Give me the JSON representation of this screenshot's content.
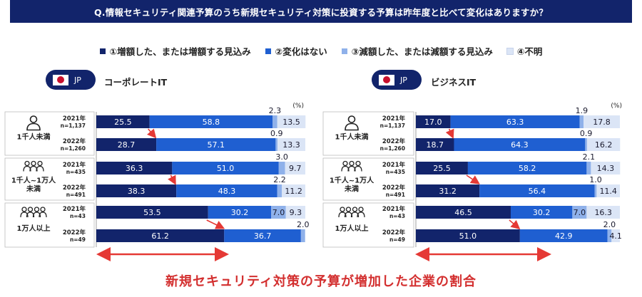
{
  "question": "Q.情報セキュリティ関連予算のうち新規セキュリティ対策に投資する予算は昨年度と比べて変化はありますか？",
  "legend": [
    {
      "label": "①増額した、または増額する見込み",
      "color": "#12246b"
    },
    {
      "label": "②変化はない",
      "color": "#1f5fd1"
    },
    {
      "label": "③減額した、または減額する見込み",
      "color": "#8fb1ea"
    },
    {
      "label": "④不明",
      "color": "#dbe5f6"
    }
  ],
  "footer": "新規セキュリティ対策の予算が増加した企業の割合",
  "chart_data": [
    {
      "type": "bar",
      "orientation": "horizontal",
      "stacked": true,
      "region": "JP",
      "title": "コーポレートIT",
      "unit": "(%)",
      "xlim": [
        0,
        100
      ],
      "groups": [
        {
          "label": "1千人未満",
          "rows": [
            {
              "year": "2021年",
              "n": "n=1,137",
              "values": [
                25.5,
                58.8,
                2.3,
                13.5
              ],
              "labels": [
                "25.5",
                "58.8",
                "2.3",
                "13.5"
              ]
            },
            {
              "year": "2022年",
              "n": "n=1,260",
              "values": [
                28.7,
                57.1,
                0.9,
                13.3
              ],
              "labels": [
                "28.7",
                "57.1",
                "0.9",
                "13.3"
              ]
            }
          ]
        },
        {
          "label": "1千人~1万人未満",
          "rows": [
            {
              "year": "2021年",
              "n": "n=435",
              "values": [
                36.3,
                51.0,
                3.0,
                9.7
              ],
              "labels": [
                "36.3",
                "51.0",
                "3.0",
                "9.7"
              ]
            },
            {
              "year": "2022年",
              "n": "n=491",
              "values": [
                38.3,
                48.3,
                2.2,
                11.2
              ],
              "labels": [
                "38.3",
                "48.3",
                "2.2",
                "11.2"
              ]
            }
          ]
        },
        {
          "label": "1万人以上",
          "rows": [
            {
              "year": "2021年",
              "n": "n=43",
              "values": [
                53.5,
                30.2,
                7.0,
                9.3
              ],
              "labels": [
                "53.5",
                "30.2",
                "7.0",
                "9.3"
              ]
            },
            {
              "year": "2022年",
              "n": "n=49",
              "values": [
                61.2,
                36.7,
                2.0,
                0
              ],
              "labels": [
                "61.2",
                "36.7",
                "2.0",
                ""
              ]
            }
          ]
        }
      ]
    },
    {
      "type": "bar",
      "orientation": "horizontal",
      "stacked": true,
      "region": "JP",
      "title": "ビジネスIT",
      "unit": "(%)",
      "xlim": [
        0,
        100
      ],
      "groups": [
        {
          "label": "1千人未満",
          "rows": [
            {
              "year": "2021年",
              "n": "n=1,137",
              "values": [
                17.0,
                63.3,
                1.9,
                17.8
              ],
              "labels": [
                "17.0",
                "63.3",
                "1.9",
                "17.8"
              ]
            },
            {
              "year": "2022年",
              "n": "n=1,260",
              "values": [
                18.7,
                64.3,
                0.9,
                16.2
              ],
              "labels": [
                "18.7",
                "64.3",
                "0.9",
                "16.2"
              ]
            }
          ]
        },
        {
          "label": "1千人~1万人未満",
          "rows": [
            {
              "year": "2021年",
              "n": "n=435",
              "values": [
                25.5,
                58.2,
                2.1,
                14.3
              ],
              "labels": [
                "25.5",
                "58.2",
                "2.1",
                "14.3"
              ]
            },
            {
              "year": "2022年",
              "n": "n=491",
              "values": [
                31.2,
                56.4,
                1.0,
                11.4
              ],
              "labels": [
                "31.2",
                "56.4",
                "1.0",
                "11.4"
              ]
            }
          ]
        },
        {
          "label": "1万人以上",
          "rows": [
            {
              "year": "2021年",
              "n": "n=43",
              "values": [
                46.5,
                30.2,
                7.0,
                16.3
              ],
              "labels": [
                "46.5",
                "30.2",
                "7.0",
                "16.3"
              ]
            },
            {
              "year": "2022年",
              "n": "n=49",
              "values": [
                51.0,
                42.9,
                2.0,
                4.1
              ],
              "labels": [
                "51.0",
                "42.9",
                "2.0",
                "4.1"
              ]
            }
          ]
        }
      ]
    }
  ]
}
